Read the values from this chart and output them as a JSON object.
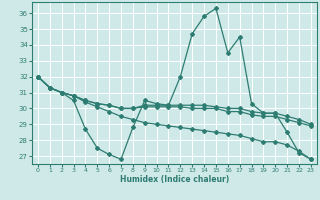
{
  "xlabel": "Humidex (Indice chaleur)",
  "background_color": "#cfe8e8",
  "grid_color": "#ffffff",
  "line_color": "#2e7d72",
  "xlim": [
    -0.5,
    23.5
  ],
  "ylim": [
    26.5,
    36.7
  ],
  "yticks": [
    27,
    28,
    29,
    30,
    31,
    32,
    33,
    34,
    35,
    36
  ],
  "xticks": [
    0,
    1,
    2,
    3,
    4,
    5,
    6,
    7,
    8,
    9,
    10,
    11,
    12,
    13,
    14,
    15,
    16,
    17,
    18,
    19,
    20,
    21,
    22,
    23
  ],
  "series": [
    [
      32.0,
      31.3,
      31.0,
      30.5,
      28.7,
      27.5,
      27.1,
      26.8,
      28.8,
      30.5,
      30.3,
      30.2,
      32.0,
      34.7,
      35.8,
      36.3,
      33.5,
      34.5,
      30.3,
      29.7,
      29.7,
      28.5,
      27.2,
      26.8
    ],
    [
      32.0,
      31.3,
      31.0,
      30.8,
      30.5,
      30.3,
      30.2,
      30.0,
      30.0,
      30.2,
      30.2,
      30.2,
      30.2,
      30.2,
      30.2,
      30.1,
      30.0,
      30.0,
      29.8,
      29.7,
      29.7,
      29.5,
      29.3,
      29.0
    ],
    [
      32.0,
      31.3,
      31.0,
      30.8,
      30.5,
      30.3,
      30.2,
      30.0,
      30.0,
      30.1,
      30.1,
      30.1,
      30.1,
      30.0,
      30.0,
      30.0,
      29.8,
      29.8,
      29.6,
      29.5,
      29.5,
      29.3,
      29.1,
      28.9
    ],
    [
      32.0,
      31.3,
      31.0,
      30.8,
      30.4,
      30.1,
      29.8,
      29.5,
      29.3,
      29.1,
      29.0,
      28.9,
      28.8,
      28.7,
      28.6,
      28.5,
      28.4,
      28.3,
      28.1,
      27.9,
      27.9,
      27.7,
      27.3,
      26.8
    ]
  ]
}
